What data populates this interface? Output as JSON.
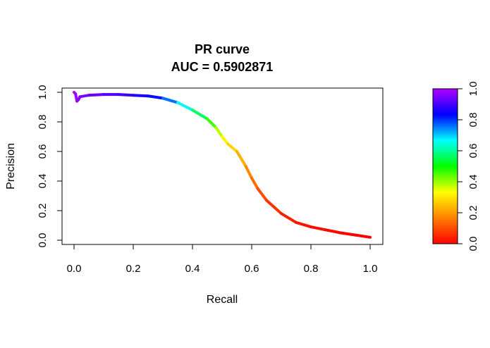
{
  "chart_data": {
    "type": "line",
    "title": "PR curve",
    "subtitle": "AUC = 0.5902871",
    "xlabel": "Recall",
    "ylabel": "Precision",
    "xlim": [
      0,
      1
    ],
    "ylim": [
      0,
      1
    ],
    "x_ticks": [
      "0.0",
      "0.2",
      "0.4",
      "0.6",
      "0.8",
      "1.0"
    ],
    "y_ticks": [
      "0.0",
      "0.2",
      "0.4",
      "0.6",
      "0.8",
      "1.0"
    ],
    "grid": false,
    "colorbar": {
      "range": [
        0,
        1
      ],
      "ticks": [
        "0.0",
        "0.2",
        "0.4",
        "0.6",
        "0.8",
        "1.0"
      ],
      "colors": [
        "#ff0000",
        "#ff8000",
        "#ffff00",
        "#00ff00",
        "#00ffff",
        "#0000ff",
        "#b000ff"
      ]
    },
    "series": [
      {
        "x": [
          0.0,
          0.005,
          0.01,
          0.015,
          0.02,
          0.05,
          0.1,
          0.15,
          0.2,
          0.25,
          0.3,
          0.35,
          0.4,
          0.45,
          0.48,
          0.5,
          0.52,
          0.55,
          0.58,
          0.6,
          0.62,
          0.65,
          0.7,
          0.75,
          0.8,
          0.85,
          0.9,
          0.95,
          1.0
        ],
        "y": [
          1.0,
          0.99,
          0.94,
          0.95,
          0.97,
          0.98,
          0.985,
          0.985,
          0.98,
          0.975,
          0.96,
          0.93,
          0.88,
          0.82,
          0.76,
          0.7,
          0.65,
          0.6,
          0.5,
          0.42,
          0.35,
          0.27,
          0.18,
          0.12,
          0.09,
          0.07,
          0.05,
          0.035,
          0.02
        ],
        "threshold": [
          1.0,
          0.99,
          0.98,
          0.97,
          0.96,
          0.94,
          0.92,
          0.9,
          0.88,
          0.85,
          0.8,
          0.72,
          0.62,
          0.5,
          0.42,
          0.34,
          0.3,
          0.26,
          0.2,
          0.16,
          0.12,
          0.08,
          0.05,
          0.03,
          0.02,
          0.01,
          0.005,
          0.0,
          0.0
        ]
      }
    ]
  }
}
